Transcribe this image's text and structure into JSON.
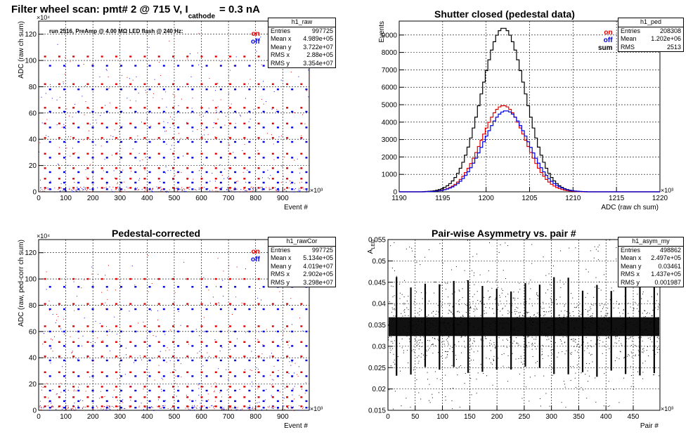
{
  "chart_data": [
    {
      "type": "scatter",
      "title": "Filter wheel scan: pmt#   2 @   715 V, I",
      "title_sub": "cathode",
      "title_tail": "= 0.3 nA",
      "xlabel": "Event #",
      "ylabel": "ADC (raw ch sum)",
      "x_multiplier": "×10³",
      "y_multiplier": "×10⁴",
      "xlim": [
        0,
        997.7
      ],
      "ylim": [
        0,
        130
      ],
      "xticks": [
        0,
        100,
        200,
        300,
        400,
        500,
        600,
        700,
        800,
        900
      ],
      "yticks": [
        0,
        20,
        40,
        60,
        80,
        100,
        120
      ],
      "grid": true,
      "annotation": "run 2516, PreAmp @ 4.00 MΩ  LED flash @  240 Hz:",
      "legend": [
        "on",
        "off"
      ],
      "stats": {
        "name": "h1_raw",
        "rows": [
          [
            "Entries",
            "997725"
          ],
          [
            "Mean x",
            "4.989e+05"
          ],
          [
            "Mean y",
            "3.722e+07"
          ],
          [
            "RMS x",
            "2.88e+05"
          ],
          [
            "RMS y",
            "3.354e+07"
          ]
        ]
      },
      "levels_on": [
        3,
        10,
        18,
        29,
        41,
        52,
        64,
        82,
        103
      ],
      "levels_off": [
        2,
        7,
        15,
        26,
        38,
        49,
        61,
        78,
        96
      ]
    },
    {
      "type": "line",
      "title": "Shutter closed (pedestal data)",
      "xlabel": "ADC (raw ch sum)",
      "ylabel": "Events",
      "x_multiplier": "×10³",
      "xlim": [
        1190,
        1220
      ],
      "ylim": [
        0,
        9800
      ],
      "xticks": [
        1190,
        1195,
        1200,
        1205,
        1210,
        1215,
        1220
      ],
      "yticks": [
        0,
        1000,
        2000,
        3000,
        4000,
        5000,
        6000,
        7000,
        8000,
        9000
      ],
      "grid": true,
      "legend": [
        "on",
        "off",
        "sum"
      ],
      "stats": {
        "name": "h1_ped",
        "rows": [
          [
            "Entries",
            "208308"
          ],
          [
            "Mean",
            "1.202e+06"
          ],
          [
            "RMS",
            "2513"
          ]
        ]
      },
      "series": [
        {
          "name": "sum",
          "mean": 1202,
          "sigma": 2.513,
          "peak": 9400,
          "color": "#000000"
        },
        {
          "name": "on",
          "mean": 1202,
          "sigma": 2.513,
          "peak": 4950,
          "color": "#e00000"
        },
        {
          "name": "off",
          "mean": 1202.3,
          "sigma": 2.6,
          "peak": 4650,
          "color": "#0000e0"
        }
      ]
    },
    {
      "type": "scatter",
      "title": "Pedestal-corrected",
      "xlabel": "Event #",
      "ylabel": "ADC (raw, ped-corr ch sum)",
      "x_multiplier": "×10³",
      "y_multiplier": "×10⁴",
      "xlim": [
        0,
        997.7
      ],
      "ylim": [
        0,
        130
      ],
      "xticks": [
        0,
        100,
        200,
        300,
        400,
        500,
        600,
        700,
        800,
        900
      ],
      "yticks": [
        0,
        20,
        40,
        60,
        80,
        100,
        120
      ],
      "grid": true,
      "legend": [
        "on",
        "off"
      ],
      "stats": {
        "name": "h1_rawCor",
        "rows": [
          [
            "Entries",
            "997725"
          ],
          [
            "Mean x",
            "5.134e+05"
          ],
          [
            "Mean y",
            "4.019e+07"
          ],
          [
            "RMS x",
            "2.902e+05"
          ],
          [
            "RMS y",
            "3.298e+07"
          ]
        ]
      },
      "levels_on": [
        3,
        10,
        18,
        29,
        41,
        52,
        64,
        81,
        100
      ],
      "levels_off": [
        2,
        7,
        15,
        26,
        38,
        49,
        60,
        77,
        94
      ]
    },
    {
      "type": "scatter",
      "title": "Pair-wise Asymmetry vs. pair #",
      "xlabel": "Pair #",
      "ylabel": "A",
      "ylabel_sub": "LED",
      "x_multiplier": "×10³",
      "xlim": [
        0,
        499
      ],
      "ylim": [
        0.015,
        0.055
      ],
      "xticks": [
        0,
        50,
        100,
        150,
        200,
        250,
        300,
        350,
        400,
        450
      ],
      "yticks": [
        0.015,
        0.02,
        0.025,
        0.03,
        0.035,
        0.04,
        0.045,
        0.05,
        0.055
      ],
      "grid": true,
      "stats": {
        "name": "h1_asym_my",
        "rows": [
          [
            "Entries",
            "498862"
          ],
          [
            "Mean x",
            "2.497e+05"
          ],
          [
            "Mean y",
            "0.03461"
          ],
          [
            "RMS x",
            "1.437e+05"
          ],
          [
            "RMS y",
            "0.001987"
          ]
        ]
      },
      "band_center": 0.0346,
      "band_halfwidth": 0.0022
    }
  ]
}
